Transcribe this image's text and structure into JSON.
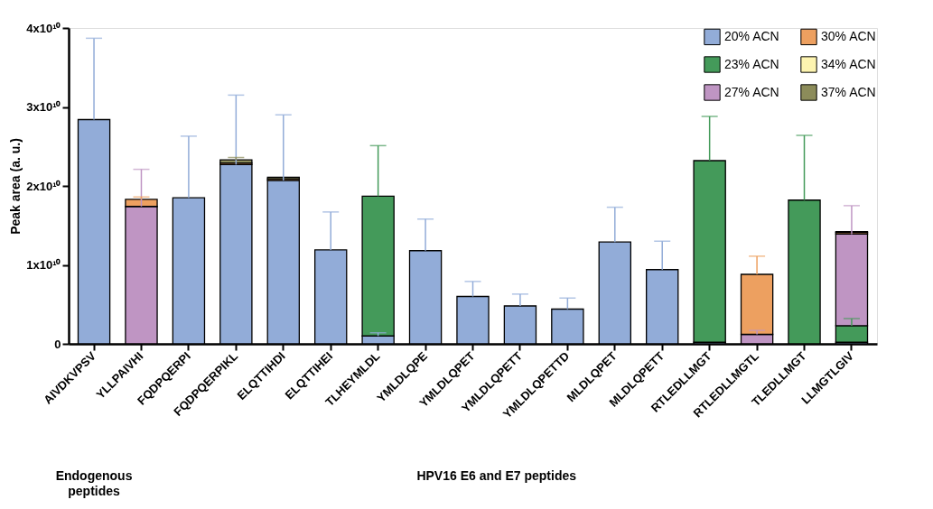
{
  "chart_data": {
    "type": "bar",
    "stacked": true,
    "ylabel": "Peak area (a. u.)",
    "categories": [
      "AIVDKVPSV",
      "YLLPAIVHI",
      "FQDPQERPI",
      "FQDPQERPIKL",
      "ELQTTIHDI",
      "ELQTTIHEI",
      "TLHEYMLDL",
      "YMLDLQPE",
      "YMLDLQPET",
      "YMLDLQPETT",
      "YMLDLQPETTD",
      "MLDLQPET",
      "MLDLQPETT",
      "RTLEDLLMGT",
      "RTLEDLLMGTL",
      "TLEDLLMGT",
      "LLMGTLGIV"
    ],
    "series": [
      {
        "name": "20% ACN",
        "color": "#92acd8",
        "values": [
          28400000000.0,
          null,
          18500000000.0,
          22700000000.0,
          20700000000.0,
          11900000000.0,
          1000000000.0,
          11800000000.0,
          6000000000.0,
          4800000000.0,
          4400000000.0,
          12900000000.0,
          9400000000.0,
          200000000.0,
          null,
          null,
          200000000.0
        ],
        "errors": [
          10300000000.0,
          null,
          7800000000.0,
          8800000000.0,
          8300000000.0,
          4800000000.0,
          400000000.0,
          4000000000.0,
          1900000000.0,
          1500000000.0,
          1400000000.0,
          4400000000.0,
          3600000000.0,
          null,
          null,
          null,
          null
        ]
      },
      {
        "name": "23% ACN",
        "color": "#449a5a",
        "values": [
          null,
          null,
          null,
          null,
          null,
          null,
          17700000000.0,
          null,
          null,
          null,
          null,
          null,
          null,
          23000000000.0,
          null,
          18200000000.0,
          2100000000.0
        ],
        "errors": [
          null,
          null,
          null,
          null,
          null,
          null,
          6400000000.0,
          null,
          null,
          null,
          null,
          null,
          null,
          5600000000.0,
          null,
          8200000000.0,
          900000000.0
        ]
      },
      {
        "name": "27% ACN",
        "color": "#bf95c3",
        "values": [
          null,
          17400000000.0,
          null,
          null,
          null,
          null,
          null,
          null,
          null,
          null,
          null,
          null,
          null,
          null,
          1200000000.0,
          null,
          11600000000.0
        ],
        "errors": [
          null,
          4700000000.0,
          null,
          null,
          null,
          null,
          null,
          null,
          null,
          null,
          null,
          null,
          null,
          null,
          500000000.0,
          null,
          3600000000.0
        ]
      },
      {
        "name": "30% ACN",
        "color": "#eda060",
        "values": [
          null,
          900000000.0,
          null,
          200000000.0,
          200000000.0,
          null,
          null,
          null,
          null,
          null,
          null,
          null,
          null,
          null,
          7600000000.0,
          null,
          200000000.0
        ],
        "errors": [
          null,
          300000000.0,
          null,
          null,
          null,
          null,
          null,
          null,
          null,
          null,
          null,
          null,
          null,
          null,
          2300000000.0,
          null,
          null
        ]
      },
      {
        "name": "34% ACN",
        "color": "#fdf4b0",
        "values": [
          null,
          null,
          null,
          null,
          null,
          null,
          null,
          null,
          null,
          null,
          null,
          null,
          null,
          null,
          null,
          null,
          null
        ]
      },
      {
        "name": "37% ACN",
        "color": "#8c8c5a",
        "values": [
          null,
          null,
          null,
          400000000.0,
          200000000.0,
          null,
          null,
          null,
          null,
          null,
          null,
          null,
          null,
          null,
          null,
          null,
          100000000.0
        ],
        "errors": [
          null,
          null,
          null,
          300000000.0,
          null,
          null,
          null,
          null,
          null,
          null,
          null,
          null,
          null,
          null,
          null,
          null,
          null
        ]
      }
    ],
    "ylim": [
      0,
      40000000000.0
    ],
    "yticks": [
      0,
      {
        "value": 10000000000.0,
        "label": "1x10¹⁰"
      },
      {
        "value": 20000000000.0,
        "label": "2x10¹⁰"
      },
      {
        "value": 30000000000.0,
        "label": "3x10¹⁰"
      },
      {
        "value": 40000000000.0,
        "label": "4x10¹⁰"
      }
    ],
    "grid": false,
    "legend": "top right",
    "annotations": [
      "Endogenous peptides",
      "HPV16 E6 and E7 peptides"
    ]
  }
}
